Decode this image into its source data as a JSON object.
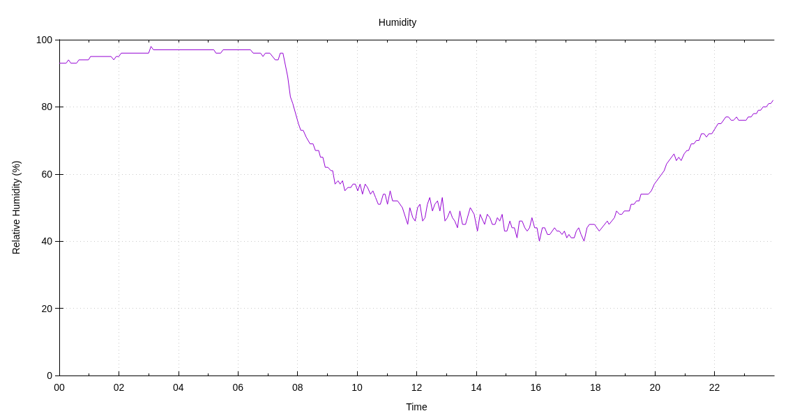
{
  "chart_data": {
    "type": "line",
    "title": "Humidity",
    "xlabel": "Time",
    "ylabel": "Relative Humidity (%)",
    "color": "#9400d3",
    "marker": "none",
    "line_style": "solid",
    "grid": true,
    "xlim": [
      0,
      24
    ],
    "ylim": [
      0,
      100
    ],
    "xticks": [
      {
        "value": 0,
        "label": "00"
      },
      {
        "value": 1,
        "label": null
      },
      {
        "value": 2,
        "label": "02"
      },
      {
        "value": 3,
        "label": null
      },
      {
        "value": 4,
        "label": "04"
      },
      {
        "value": 5,
        "label": null
      },
      {
        "value": 6,
        "label": "06"
      },
      {
        "value": 7,
        "label": null
      },
      {
        "value": 8,
        "label": "08"
      },
      {
        "value": 9,
        "label": null
      },
      {
        "value": 10,
        "label": "10"
      },
      {
        "value": 11,
        "label": null
      },
      {
        "value": 12,
        "label": "12"
      },
      {
        "value": 13,
        "label": null
      },
      {
        "value": 14,
        "label": "14"
      },
      {
        "value": 15,
        "label": null
      },
      {
        "value": 16,
        "label": "16"
      },
      {
        "value": 17,
        "label": null
      },
      {
        "value": 18,
        "label": "18"
      },
      {
        "value": 19,
        "label": null
      },
      {
        "value": 20,
        "label": "20"
      },
      {
        "value": 21,
        "label": null
      },
      {
        "value": 22,
        "label": "22"
      },
      {
        "value": 23,
        "label": null
      }
    ],
    "yticks": [
      0,
      20,
      40,
      60,
      80,
      100
    ],
    "x": [
      0,
      0.23,
      0.31,
      0.39,
      0.58,
      0.66,
      0.98,
      1.05,
      1.74,
      1.83,
      1.91,
      2.0,
      2.08,
      3.0,
      3.08,
      3.16,
      5.19,
      5.26,
      5.42,
      5.5,
      6.42,
      6.51,
      6.76,
      6.84,
      6.92,
      7.07,
      7.25,
      7.35,
      7.42,
      7.51,
      7.67,
      7.76,
      7.84,
      8.03,
      8.11,
      8.19,
      8.29,
      8.42,
      8.52,
      8.6,
      8.71,
      8.77,
      8.85,
      8.93,
      9.02,
      9.12,
      9.18,
      9.26,
      9.36,
      9.43,
      9.51,
      9.59,
      9.69,
      9.79,
      9.86,
      9.94,
      10.02,
      10.1,
      10.18,
      10.27,
      10.35,
      10.45,
      10.53,
      10.62,
      10.71,
      10.78,
      10.88,
      10.94,
      11.02,
      11.11,
      11.19,
      11.36,
      11.52,
      11.7,
      11.77,
      11.87,
      11.95,
      12.03,
      12.11,
      12.2,
      12.28,
      12.36,
      12.44,
      12.53,
      12.61,
      12.7,
      12.78,
      12.86,
      12.95,
      13.03,
      13.12,
      13.2,
      13.28,
      13.37,
      13.45,
      13.54,
      13.64,
      13.8,
      13.93,
      14.04,
      14.13,
      14.23,
      14.28,
      14.37,
      14.46,
      14.54,
      14.63,
      14.71,
      14.79,
      14.87,
      14.95,
      15.03,
      15.13,
      15.2,
      15.28,
      15.37,
      15.45,
      15.54,
      15.63,
      15.71,
      15.79,
      15.87,
      15.96,
      16.04,
      16.12,
      16.22,
      16.3,
      16.39,
      16.47,
      16.63,
      16.71,
      16.79,
      16.88,
      16.96,
      17.04,
      17.11,
      17.19,
      17.29,
      17.36,
      17.44,
      17.52,
      17.62,
      17.72,
      17.8,
      17.97,
      18.13,
      18.4,
      18.46,
      18.64,
      18.71,
      18.81,
      18.89,
      18.97,
      19.14,
      19.2,
      19.3,
      19.38,
      19.47,
      19.53,
      19.78,
      19.88,
      19.98,
      20.31,
      20.39,
      20.64,
      20.72,
      20.8,
      20.88,
      20.98,
      21.07,
      21.13,
      21.22,
      21.31,
      21.39,
      21.48,
      21.56,
      21.65,
      21.73,
      21.81,
      21.91,
      22.12,
      22.22,
      22.38,
      22.47,
      22.56,
      22.64,
      22.74,
      22.81,
      23.06,
      23.13,
      23.23,
      23.31,
      23.41,
      23.47,
      23.55,
      23.63,
      23.74,
      23.82,
      23.89,
      23.97
    ],
    "values": [
      93,
      93,
      94,
      93,
      93,
      94,
      94,
      95,
      95,
      94,
      95,
      95,
      96,
      96,
      98,
      97,
      97,
      96,
      96,
      97,
      97,
      96,
      96,
      95,
      96,
      96,
      94,
      94,
      96,
      96,
      89,
      83,
      81,
      75,
      73,
      73,
      71,
      69,
      69,
      67,
      67,
      65,
      65,
      62,
      62,
      61,
      61,
      57,
      58,
      57,
      58,
      55,
      56,
      56,
      57,
      57,
      55,
      57,
      54,
      57,
      56,
      54,
      55,
      53,
      51,
      51,
      54,
      54,
      51,
      55,
      52,
      52,
      50,
      45,
      50,
      47,
      46,
      50,
      51,
      46,
      47,
      51,
      53,
      49,
      51,
      52,
      49,
      53,
      46,
      47,
      49,
      47,
      46,
      44,
      49,
      45,
      45,
      50,
      48,
      43,
      48,
      46,
      45,
      48,
      47,
      45,
      45,
      47,
      46,
      48,
      43,
      43,
      46,
      44,
      44,
      41,
      46,
      46,
      44,
      43,
      44,
      47,
      44,
      44,
      40,
      44,
      44,
      42,
      42,
      44,
      43,
      43,
      42,
      43,
      41,
      42,
      41,
      41,
      43,
      44,
      42,
      40,
      44,
      45,
      45,
      43,
      46,
      45,
      47,
      49,
      48,
      48,
      49,
      49,
      51,
      51,
      52,
      52,
      54,
      54,
      55,
      57,
      61,
      63,
      66,
      64,
      65,
      64,
      66,
      67,
      67,
      69,
      69,
      70,
      70,
      72,
      72,
      71,
      72,
      72,
      75,
      75,
      77,
      77,
      76,
      76,
      77,
      76,
      76,
      77,
      77,
      78,
      78,
      79,
      79,
      80,
      80,
      81,
      81,
      82
    ]
  }
}
